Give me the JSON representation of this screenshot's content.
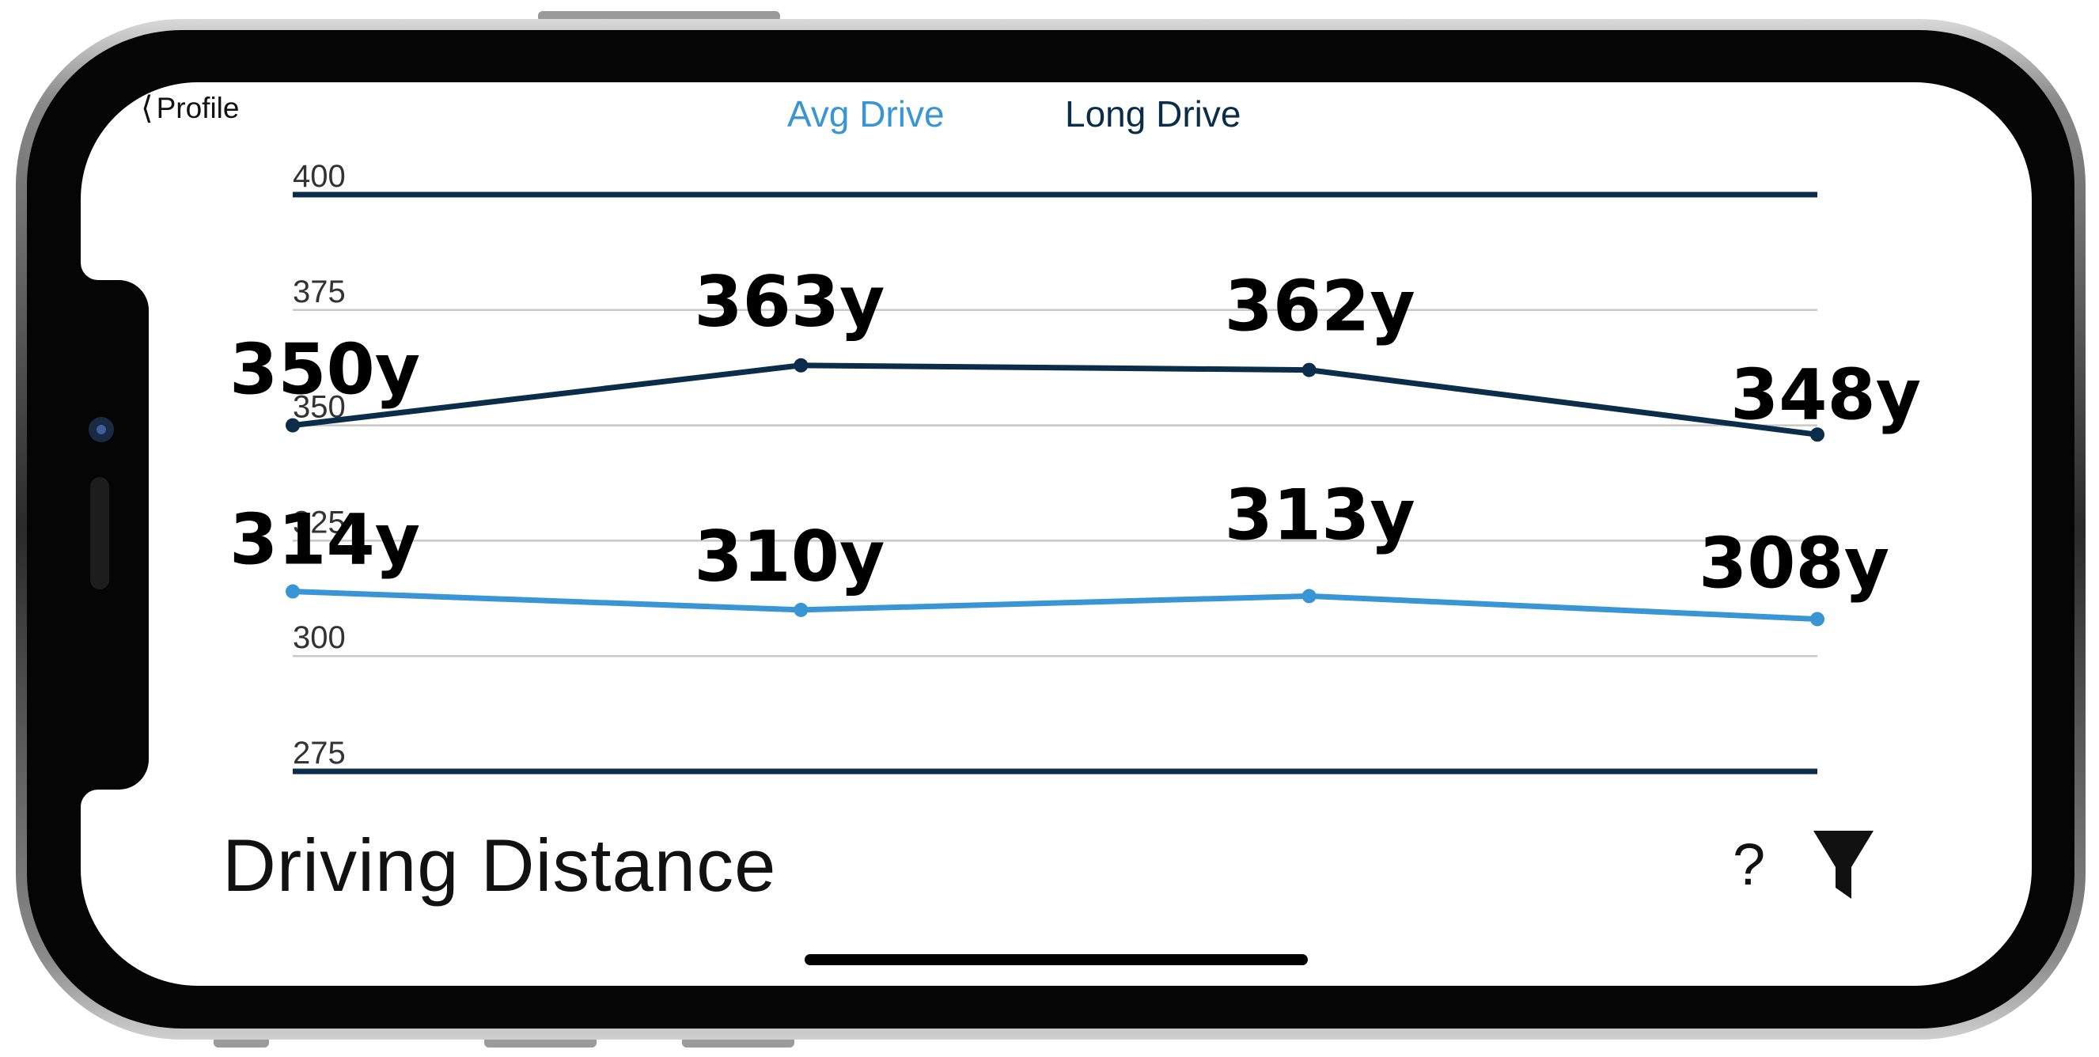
{
  "nav": {
    "back_label": "Profile"
  },
  "tabs": [
    {
      "label": "Avg Drive"
    },
    {
      "label": "Long Drive"
    }
  ],
  "page_title": "Driving Distance",
  "help_label": "?",
  "icons": {
    "back": "chevron-left-icon",
    "filter": "filter-icon"
  },
  "colors": {
    "avg_drive": "#3a95d4",
    "long_drive": "#0c2d49",
    "grid": "#c8c8c8",
    "label": "#000000"
  },
  "chart_data": {
    "type": "line",
    "x": [
      1,
      2,
      3,
      4
    ],
    "ylim": [
      275,
      400
    ],
    "yticks": [
      400,
      375,
      350,
      325,
      300,
      275
    ],
    "grid": true,
    "legend": "top",
    "series": [
      {
        "name": "Long Drive",
        "values": [
          350,
          363,
          362,
          348
        ],
        "labels": [
          "350y",
          "363y",
          "362y",
          "348y"
        ]
      },
      {
        "name": "Avg Drive",
        "values": [
          314,
          310,
          313,
          308
        ],
        "labels": [
          "314y",
          "310y",
          "313y",
          "308y"
        ]
      }
    ]
  }
}
